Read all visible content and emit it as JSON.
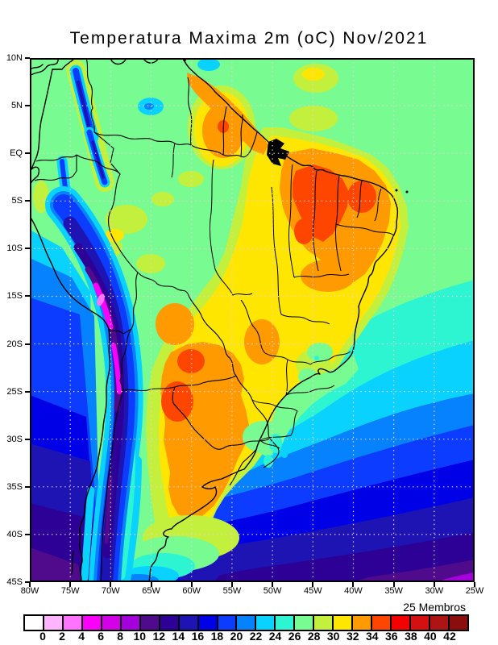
{
  "title": "Temperatura Maxima 2m (oC) Nov/2021",
  "axes": {
    "lat_labels": [
      "10N",
      "5N",
      "EQ",
      "5S",
      "10S",
      "15S",
      "20S",
      "25S",
      "30S",
      "35S",
      "40S",
      "45S"
    ],
    "lon_labels": [
      "80W",
      "75W",
      "70W",
      "65W",
      "60W",
      "55W",
      "50W",
      "45W",
      "40W",
      "35W",
      "30W",
      "25W"
    ]
  },
  "colorbar": {
    "members_label": "25 Membros",
    "tick_labels": [
      "0",
      "2",
      "4",
      "6",
      "8",
      "10",
      "12",
      "14",
      "16",
      "18",
      "20",
      "22",
      "24",
      "26",
      "28",
      "30",
      "32",
      "34",
      "36",
      "38",
      "40",
      "42"
    ],
    "colors": [
      "#FFFFFF",
      "#FFB4FF",
      "#FF73FF",
      "#FA00FA",
      "#D200E6",
      "#A500DC",
      "#500A8C",
      "#2D0096",
      "#1E14B4",
      "#0000E6",
      "#0C3CFF",
      "#0782FF",
      "#0AD2FF",
      "#2DF5D2",
      "#78FB91",
      "#C3F03C",
      "#FFE600",
      "#FF9B00",
      "#FF4600",
      "#F50000",
      "#D51010",
      "#AF1414",
      "#8B0E0E"
    ]
  }
}
